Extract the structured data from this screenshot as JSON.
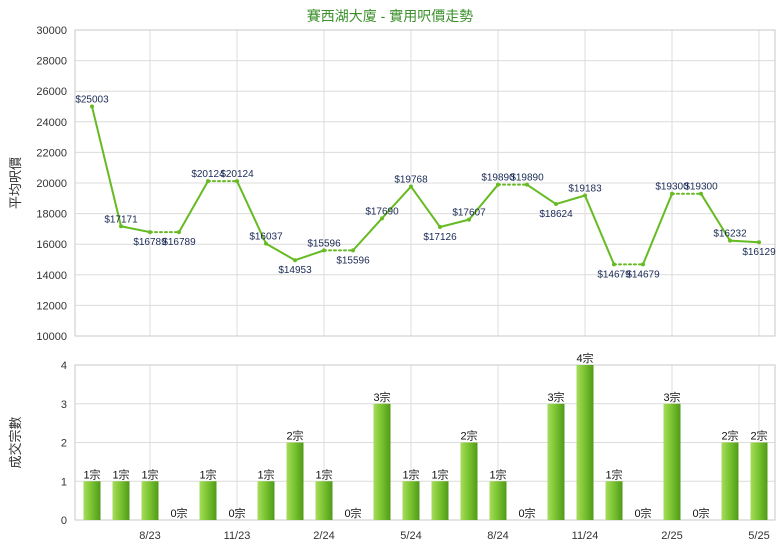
{
  "chart_data": [
    {
      "type": "line",
      "title": "賽西湖大廈 - 實用呎價走勢",
      "ylabel": "平均呎價",
      "ylim": [
        10000,
        30000
      ],
      "yticks": [
        10000,
        12000,
        14000,
        16000,
        18000,
        20000,
        22000,
        24000,
        26000,
        28000,
        30000
      ],
      "series": [
        {
          "values": [
            25003,
            17171,
            16789,
            16789,
            20124,
            20124,
            16037,
            14953,
            15596,
            15596,
            17690,
            19768,
            17126,
            17607,
            19890,
            19890,
            18624,
            19183,
            14679,
            14679,
            19300,
            19300,
            16232,
            16129
          ],
          "labels": [
            "$25003",
            "$17171",
            "$16789",
            "$16789",
            "$20124",
            "$20124",
            "$16037",
            "$14953",
            "$15596",
            "$15596",
            "$17690",
            "$19768",
            "$17126",
            "$17607",
            "$19890",
            "$19890",
            "$18624",
            "$19183",
            "$14679",
            "$14679",
            "$19300",
            "$19300",
            "$16232",
            "$16129"
          ],
          "dotted_segments": [
            2,
            4,
            8,
            14,
            18,
            20
          ],
          "color": "#66bb22"
        }
      ],
      "grid": true
    },
    {
      "type": "bar",
      "ylabel": "成交宗數",
      "ylim": [
        0,
        4
      ],
      "yticks": [
        0,
        1,
        2,
        3,
        4
      ],
      "categories": [
        "",
        "",
        "8/23",
        "",
        "",
        "11/23",
        "",
        "",
        "2/24",
        "",
        "",
        "5/24",
        "",
        "",
        "8/24",
        "",
        "",
        "11/24",
        "",
        "",
        "2/25",
        "",
        "",
        "5/25"
      ],
      "values": [
        1,
        1,
        1,
        0,
        1,
        0,
        1,
        2,
        1,
        0,
        3,
        1,
        1,
        2,
        1,
        0,
        3,
        4,
        1,
        0,
        3,
        0,
        2,
        2
      ],
      "labels": [
        "1宗",
        "1宗",
        "1宗",
        "0宗",
        "1宗",
        "0宗",
        "1宗",
        "2宗",
        "1宗",
        "0宗",
        "3宗",
        "1宗",
        "1宗",
        "2宗",
        "1宗",
        "0宗",
        "3宗",
        "4宗",
        "1宗",
        "0宗",
        "3宗",
        "0宗",
        "2宗",
        "2宗"
      ],
      "color": "#6cbb2a",
      "grid": true
    }
  ]
}
